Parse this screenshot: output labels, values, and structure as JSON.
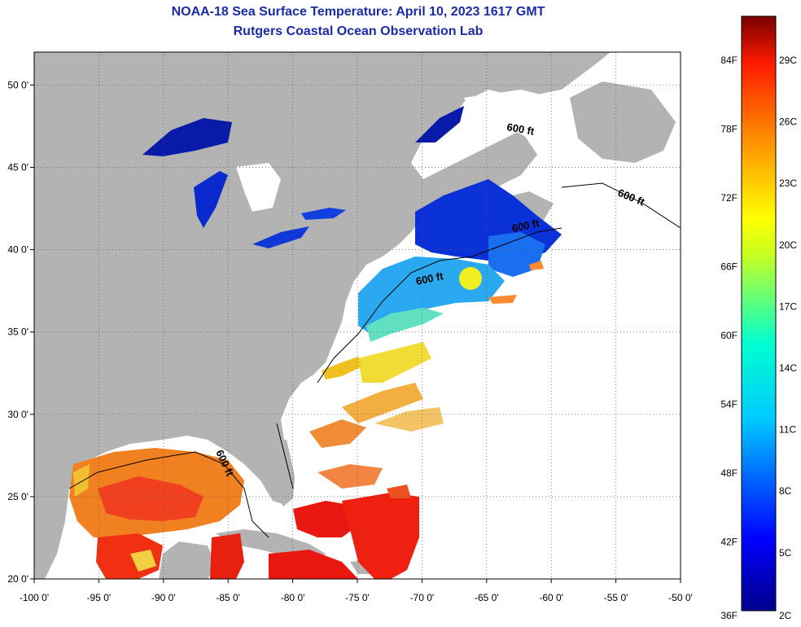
{
  "title_line1": "NOAA-18 Sea Surface Temperature:  April 10, 2023 1617 GMT",
  "title_line2": "Rutgers Coastal Ocean Observation Lab",
  "map": {
    "lon_range": [
      -100,
      -50
    ],
    "lat_range": [
      20,
      52
    ],
    "lon_ticks": [
      "-100 0'",
      "-95 0'",
      "-90 0'",
      "-85 0'",
      "-80 0'",
      "-75 0'",
      "-70 0'",
      "-65 0'",
      "-60 0'",
      "-55 0'",
      "-50 0'"
    ],
    "lat_ticks": [
      "20 0'",
      "25 0'",
      "30 0'",
      "35 0'",
      "40 0'",
      "45 0'",
      "50 0'"
    ],
    "contour_label": "600 ft",
    "colors": {
      "land": "#b3b3b3",
      "ocean_nodata": "#ffffff",
      "border": "#000000"
    }
  },
  "colorbar": {
    "fahrenheit_labels": [
      "84F",
      "78F",
      "72F",
      "66F",
      "60F",
      "54F",
      "48F",
      "42F",
      "36F"
    ],
    "celsius_labels": [
      "29C",
      "26C",
      "23C",
      "20C",
      "17C",
      "14C",
      "11C",
      "8C",
      "5C",
      "2C"
    ]
  }
}
